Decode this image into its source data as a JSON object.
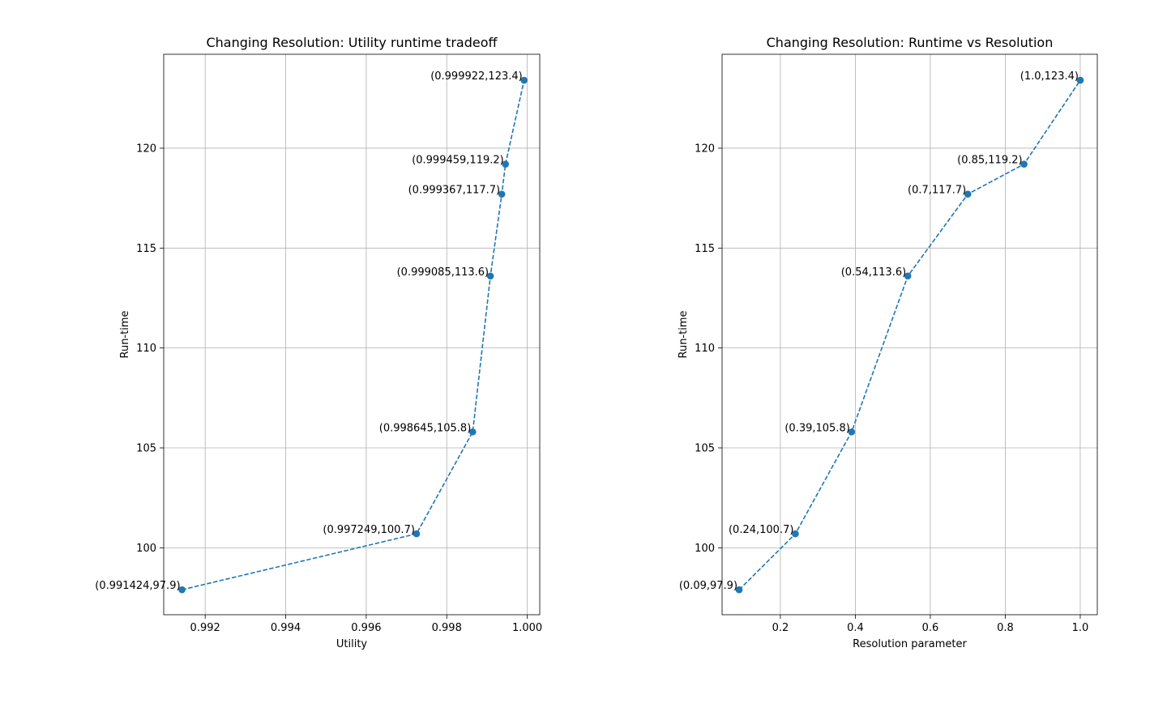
{
  "chart_data": [
    {
      "type": "line",
      "title": "Changing Resolution: Utility runtime tradeoff",
      "xlabel": "Utility",
      "ylabel": "Run-time",
      "xlim": [
        0.99097,
        1.00031
      ],
      "ylim": [
        96.65,
        124.7
      ],
      "grid": true,
      "xticks": [
        0.992,
        0.994,
        0.996,
        0.998,
        1.0
      ],
      "xtick_labels": [
        "0.992",
        "0.994",
        "0.996",
        "0.998",
        "1.000"
      ],
      "yticks": [
        100,
        105,
        110,
        115,
        120
      ],
      "ytick_labels": [
        "100",
        "105",
        "110",
        "115",
        "120"
      ],
      "line_style": "dashed",
      "marker": "circle",
      "color": "#1f77b4",
      "series": [
        {
          "x": [
            0.991424,
            0.997249,
            0.998645,
            0.999085,
            0.999367,
            0.999459,
            0.999922
          ],
          "y": [
            97.9,
            100.7,
            105.8,
            113.6,
            117.7,
            119.2,
            123.4
          ],
          "labels": [
            "(0.991424,97.9)",
            "(0.997249,100.7)",
            "(0.998645,105.8)",
            "(0.999085,113.6)",
            "(0.999367,117.7)",
            "(0.999459,119.2)",
            "(0.999922,123.4)"
          ]
        }
      ]
    },
    {
      "type": "line",
      "title": "Changing Resolution: Runtime vs Resolution",
      "xlabel": "Resolution parameter",
      "ylabel": "Run-time",
      "xlim": [
        0.0445,
        1.0455
      ],
      "ylim": [
        96.65,
        124.7
      ],
      "grid": true,
      "xticks": [
        0.2,
        0.4,
        0.6,
        0.8,
        1.0
      ],
      "xtick_labels": [
        "0.2",
        "0.4",
        "0.6",
        "0.8",
        "1.0"
      ],
      "yticks": [
        100,
        105,
        110,
        115,
        120
      ],
      "ytick_labels": [
        "100",
        "105",
        "110",
        "115",
        "120"
      ],
      "line_style": "dashed",
      "marker": "circle",
      "color": "#1f77b4",
      "series": [
        {
          "x": [
            0.09,
            0.24,
            0.39,
            0.54,
            0.7,
            0.85,
            1.0
          ],
          "y": [
            97.9,
            100.7,
            105.8,
            113.6,
            117.7,
            119.2,
            123.4
          ],
          "labels": [
            "(0.09,97.9)",
            "(0.24,100.7)",
            "(0.39,105.8)",
            "(0.54,113.6)",
            "(0.7,117.7)",
            "(0.85,119.2)",
            "(1.0,123.4)"
          ]
        }
      ]
    }
  ]
}
